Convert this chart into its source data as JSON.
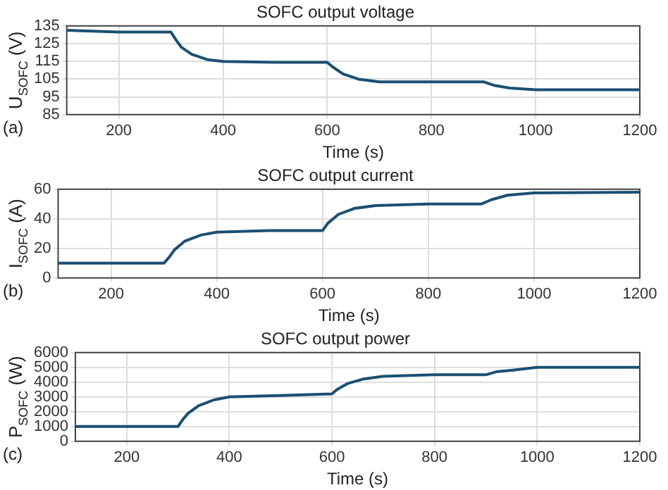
{
  "chart_data": [
    {
      "type": "line",
      "title": "SOFC output voltage",
      "xlabel": "Time (s)",
      "ylabel": "U$_{SOFC}$ (V)",
      "annotations": [
        "(a)"
      ],
      "grid": true,
      "marker": "none",
      "xlim": [
        100,
        1200
      ],
      "xticks": [
        200,
        400,
        600,
        800,
        1000,
        1200
      ],
      "ylim": [
        85,
        135
      ],
      "yticks": [
        85,
        95,
        105,
        115,
        125,
        135
      ],
      "x": [
        100,
        200,
        300,
        310,
        320,
        340,
        370,
        400,
        500,
        600,
        610,
        630,
        660,
        700,
        800,
        900,
        920,
        950,
        1000,
        1200
      ],
      "series": [
        {
          "color": "#1b4f72",
          "values": [
            132.5,
            131.5,
            131.5,
            127,
            123,
            119,
            116,
            115,
            114.5,
            114.5,
            112,
            108,
            105,
            103.5,
            103.5,
            103.5,
            101.5,
            100,
            99,
            99
          ]
        }
      ]
    },
    {
      "type": "line",
      "title": "SOFC output current",
      "xlabel": "Time (s)",
      "ylabel": "I$_{SOFC}$ (A)",
      "annotations": [
        "(b)"
      ],
      "grid": true,
      "marker": "none",
      "xlim": [
        100,
        1200
      ],
      "xticks": [
        200,
        400,
        600,
        800,
        1000,
        1200
      ],
      "ylim": [
        0,
        60
      ],
      "yticks": [
        0,
        20,
        40,
        60
      ],
      "x": [
        100,
        200,
        300,
        310,
        320,
        340,
        370,
        400,
        500,
        600,
        610,
        630,
        660,
        700,
        800,
        900,
        920,
        950,
        1000,
        1200
      ],
      "series": [
        {
          "color": "#1b4f72",
          "values": [
            10,
            10,
            10,
            14,
            19,
            25,
            29,
            31,
            32,
            32,
            37,
            43,
            47,
            49,
            50,
            50,
            53,
            56,
            57.5,
            58
          ]
        }
      ]
    },
    {
      "type": "line",
      "title": "SOFC output power",
      "xlabel": "Time (s)",
      "ylabel": "P$_{SOFC}$ (W)",
      "annotations": [
        "(c)"
      ],
      "grid": true,
      "marker": "none",
      "xlim": [
        100,
        1200
      ],
      "xticks": [
        200,
        400,
        600,
        800,
        1000,
        1200
      ],
      "ylim": [
        0,
        6000
      ],
      "yticks": [
        0,
        1000,
        2000,
        3000,
        4000,
        5000,
        6000
      ],
      "x": [
        100,
        200,
        300,
        310,
        320,
        340,
        370,
        400,
        500,
        600,
        610,
        630,
        660,
        700,
        800,
        900,
        920,
        950,
        1000,
        1200
      ],
      "series": [
        {
          "color": "#1b4f72",
          "values": [
            1000,
            1000,
            1000,
            1500,
            1900,
            2400,
            2800,
            3000,
            3100,
            3200,
            3500,
            3900,
            4200,
            4400,
            4500,
            4500,
            4700,
            4800,
            5000,
            5000
          ]
        }
      ]
    }
  ]
}
